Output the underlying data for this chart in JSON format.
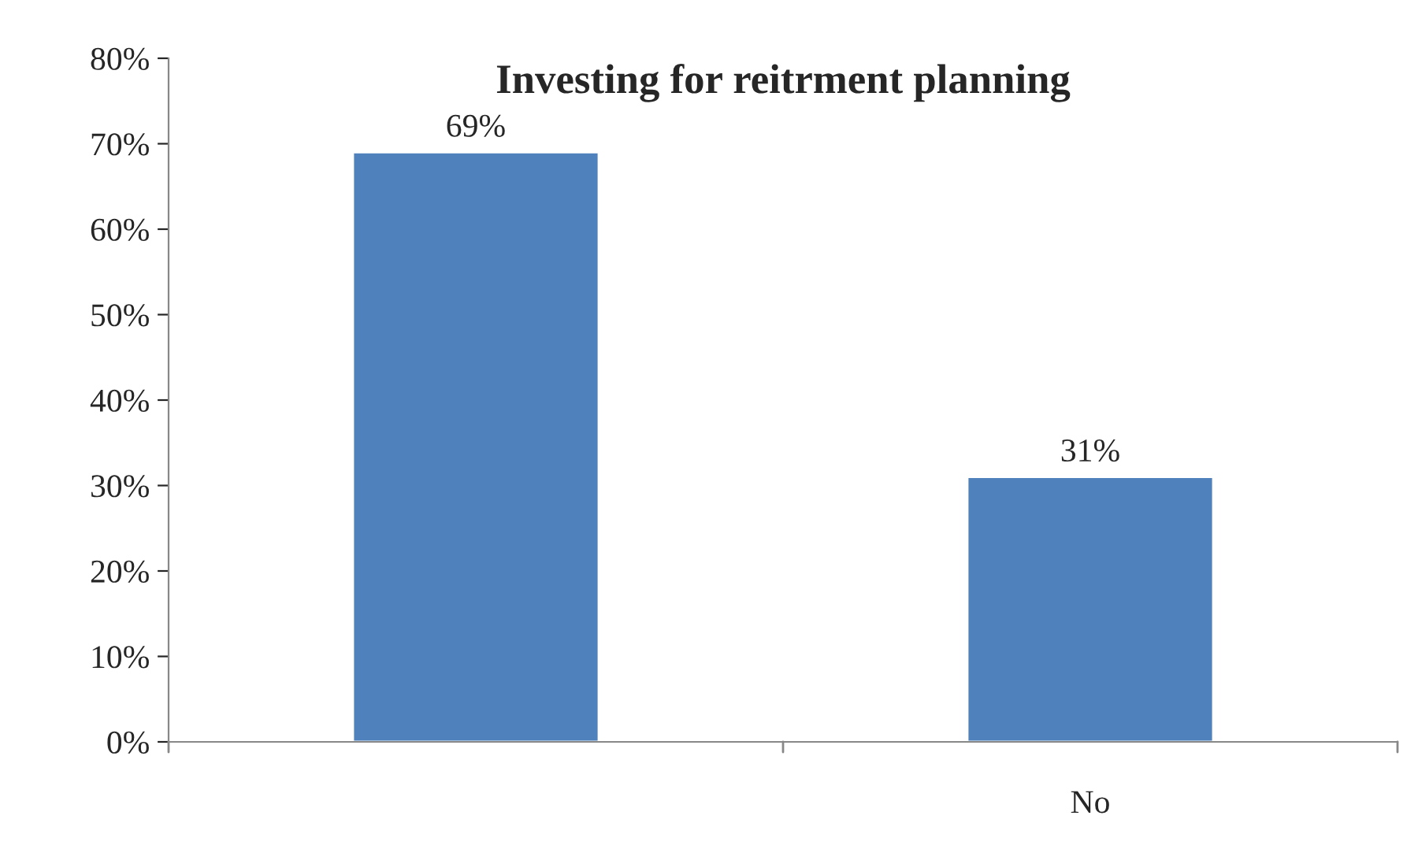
{
  "chart_data": {
    "type": "bar",
    "title": "Investing for reitrment planning",
    "categories": [
      null,
      "No"
    ],
    "values": [
      69,
      31
    ],
    "value_labels": [
      "69%",
      "31%"
    ],
    "color": "#4f81bd",
    "ylim": [
      0,
      80
    ],
    "yticks": [
      {
        "value": 0,
        "label": "0%"
      },
      {
        "value": 10,
        "label": "10%"
      },
      {
        "value": 20,
        "label": "20%"
      },
      {
        "value": 30,
        "label": "30%"
      },
      {
        "value": 40,
        "label": "40%"
      },
      {
        "value": 50,
        "label": "50%"
      },
      {
        "value": 60,
        "label": "60%"
      },
      {
        "value": 70,
        "label": "70%"
      },
      {
        "value": 80,
        "label": "80%"
      }
    ],
    "grid": false,
    "legend": false
  }
}
